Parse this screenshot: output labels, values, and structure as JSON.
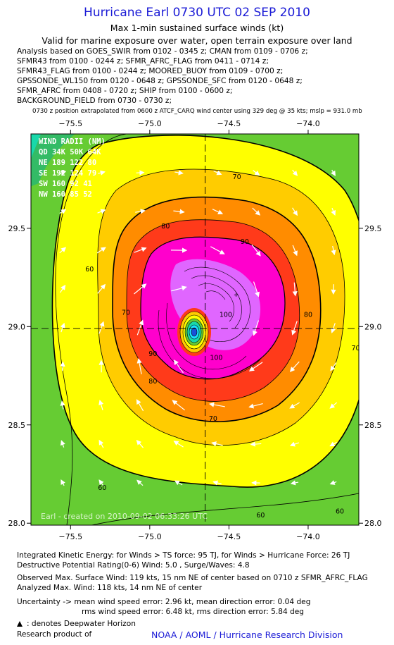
{
  "header": {
    "title": "Hurricane Earl 0730 UTC 02 SEP 2010",
    "subtitle": "Max 1-min sustained surface winds (kt)",
    "valid": "Valid for marine exposure over water, open terrain exposure over land"
  },
  "sources": [
    "Analysis based on GOES_SWIR from 0102 - 0345 z; CMAN from 0109 - 0706 z;",
    "SFMR43 from 0100 - 0244 z; SFMR_AFRC_FLAG from 0411 - 0714 z;",
    "SFMR43_FLAG from 0100 - 0244 z; MOORED_BUOY from 0109 - 0700 z;",
    "GPSSONDE_WL150 from 0120 - 0648 z; GPSSONDE_SFC from 0120 - 0648 z;",
    "SFMR_AFRC from 0408 - 0720 z; SHIP from 0100 - 0600 z;",
    "BACKGROUND_FIELD from 0730 - 0730 z;"
  ],
  "position_note": "0730 z position extrapolated from 0600 z ATCF_CARQ wind center using 329 deg @ 35 kts; mslp = 931.0 mb",
  "wind_radii": {
    "title": "WIND RADII (NM)",
    "header": "QD 34K 50K 64K",
    "rows": [
      "NE 189 122 80",
      "SE 192 124 79",
      "SW 160 92 41",
      "NW 160 85 52"
    ]
  },
  "watermark": "Earl - created on 2010-09-02 06:33:26 UTC",
  "chart_data": {
    "type": "heatmap",
    "x_ticks": [
      -75.5,
      -75.0,
      -74.5,
      -74.0
    ],
    "y_ticks": [
      28.0,
      28.5,
      29.0,
      29.5
    ],
    "x_tick_labels": [
      "−75.5",
      "−75.0",
      "−74.5",
      "−74.0"
    ],
    "y_tick_labels": [
      "28.0",
      "28.5",
      "29.0",
      "29.5"
    ],
    "xlim": [
      -75.75,
      -73.68
    ],
    "ylim": [
      27.99,
      29.98
    ],
    "center": [
      -74.65,
      28.99
    ],
    "max_wind_kt": 118,
    "contour_labels": [
      {
        "text": "60",
        "lon": -75.38,
        "lat": 29.28
      },
      {
        "text": "60",
        "lon": -75.3,
        "lat": 28.17
      },
      {
        "text": "60",
        "lon": -74.3,
        "lat": 28.03
      },
      {
        "text": "60",
        "lon": -73.8,
        "lat": 28.05
      },
      {
        "text": "70",
        "lon": -75.15,
        "lat": 29.06
      },
      {
        "text": "70",
        "lon": -74.45,
        "lat": 29.75
      },
      {
        "text": "70",
        "lon": -74.6,
        "lat": 28.52
      },
      {
        "text": "70",
        "lon": -73.7,
        "lat": 28.88
      },
      {
        "text": "80",
        "lon": -74.9,
        "lat": 29.5
      },
      {
        "text": "80",
        "lon": -74.0,
        "lat": 29.05
      },
      {
        "text": "80",
        "lon": -74.98,
        "lat": 28.71
      },
      {
        "text": "90",
        "lon": -74.98,
        "lat": 28.85
      },
      {
        "text": "90",
        "lon": -74.4,
        "lat": 29.42
      },
      {
        "text": "100",
        "lon": -74.52,
        "lat": 29.05
      },
      {
        "text": "100",
        "lon": -74.58,
        "lat": 28.83
      }
    ],
    "colors": {
      "green": "#66cc33",
      "yellow": "#ffff00",
      "orange1": "#ffcc00",
      "orange2": "#ff8c00",
      "red": "#ff3a1a",
      "magenta": "#ff00cc",
      "violet": "#e066ff",
      "eye_blue": "#1a4fd8",
      "eye_cyan": "#19e0ff"
    }
  },
  "footer": {
    "ike": "Integrated Kinetic Energy:  for Winds > TS force: 95 TJ,  for Winds > Hurricane Force: 26 TJ",
    "dpr": "Destructive Potential Rating(0-6)   Wind: 5.0 , Surge/Waves: 4.8",
    "obs_max": "Observed Max. Surface Wind: 119 kts, 15 nm NE of center based on 0710 z SFMR_AFRC_FLAG",
    "analyzed_max": "Analyzed Max. Wind: 118 kts, 14 nm NE of center",
    "uncert1": "Uncertainty -> mean wind speed error: 2.96 kt,   mean direction error: 0.04 deg",
    "uncert2": "rms wind speed error: 6.48 kt,    rms direction error: 5.84 deg",
    "legend": ": denotes Deepwater Horizon",
    "product_label": "Research product of",
    "credit": "NOAA / AOML / Hurricane Research Division"
  }
}
